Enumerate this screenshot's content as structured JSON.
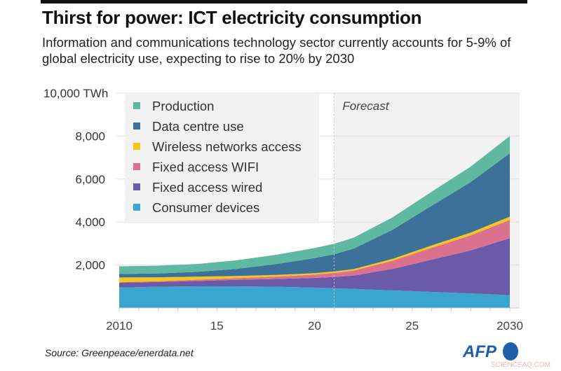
{
  "title": "Thirst for power: ICT electricity consumption",
  "subtitle": "Information and communications technology sector currently accounts for 5-9% of global electricity use, expecting to rise to 20% by 2030",
  "source": "Source: Greenpeace/enerdata.net",
  "logo": "AFP",
  "watermark": "SCIENCEAQ.COM",
  "chart_data": {
    "type": "area",
    "stacked": true,
    "x": [
      2010,
      2012,
      2014,
      2016,
      2018,
      2020,
      2021,
      2022,
      2024,
      2026,
      2028,
      2030
    ],
    "xlim": [
      2010,
      2031
    ],
    "ylim": [
      0,
      10000
    ],
    "x_ticks": [
      {
        "value": 2010,
        "label": "2010"
      },
      {
        "value": 2015,
        "label": "15"
      },
      {
        "value": 2020,
        "label": "20"
      },
      {
        "value": 2025,
        "label": "25"
      },
      {
        "value": 2030,
        "label": "2030"
      }
    ],
    "y_ticks": [
      {
        "value": 2000,
        "label": "2,000"
      },
      {
        "value": 4000,
        "label": "4,000"
      },
      {
        "value": 6000,
        "label": "6,000"
      },
      {
        "value": 8000,
        "label": "8,000"
      },
      {
        "value": 10000,
        "label": "10,000 TWh"
      }
    ],
    "forecast_start": 2021,
    "forecast_label": "Forecast",
    "legend_position": "top-left",
    "grid": true,
    "series": [
      {
        "name": "Consumer devices",
        "color": "#3aa6d0",
        "values": [
          950,
          990,
          1010,
          1010,
          990,
          950,
          920,
          890,
          820,
          750,
          680,
          600
        ]
      },
      {
        "name": "Fixed access wired",
        "color": "#6a5ba8",
        "values": [
          230,
          220,
          250,
          300,
          360,
          450,
          520,
          620,
          1000,
          1500,
          2000,
          2650
        ]
      },
      {
        "name": "Fixed access WIFI",
        "color": "#d9718f",
        "values": [
          20,
          40,
          60,
          80,
          110,
          150,
          190,
          230,
          380,
          550,
          700,
          850
        ]
      },
      {
        "name": "Wireless networks access",
        "color": "#f5c518",
        "values": [
          220,
          180,
          140,
          100,
          80,
          70,
          70,
          70,
          90,
          110,
          130,
          150
        ]
      },
      {
        "name": "Data centre use",
        "color": "#3c7199",
        "values": [
          160,
          180,
          220,
          330,
          500,
          700,
          800,
          950,
          1350,
          1850,
          2350,
          2950
        ]
      },
      {
        "name": "Production",
        "color": "#5fb8a0",
        "values": [
          360,
          360,
          370,
          400,
          430,
          470,
          490,
          510,
          580,
          650,
          720,
          800
        ]
      }
    ],
    "legend_order": [
      "Production",
      "Data centre use",
      "Wireless networks access",
      "Fixed access WIFI",
      "Fixed access wired",
      "Consumer devices"
    ]
  }
}
